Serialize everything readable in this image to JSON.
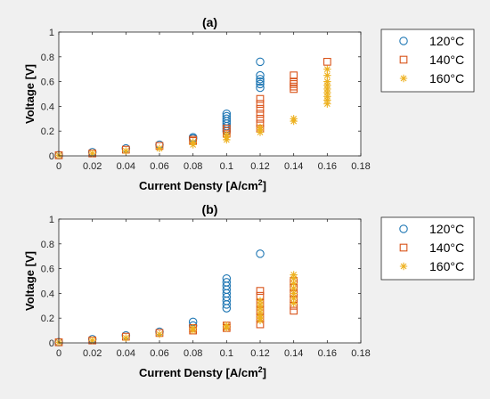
{
  "figure": {
    "background": "#f0f0f0",
    "marker_colors": {
      "120": "#1f77b4",
      "140": "#d95319",
      "160": "#edb120"
    }
  },
  "chart_data": [
    {
      "type": "scatter",
      "title": "(a)",
      "xlabel": "Current Densty [A/cm",
      "xlabel_sup": "2",
      "xlabel_tail": "]",
      "ylabel": "Voltage [V]",
      "xlim": [
        0,
        0.18
      ],
      "ylim": [
        0,
        1
      ],
      "x_ticks": [
        0,
        0.02,
        0.04,
        0.06,
        0.08,
        0.1,
        0.12,
        0.14,
        0.16,
        0.18
      ],
      "x_tick_labels": [
        "0",
        "0.02",
        "0.04",
        "0.06",
        "0.08",
        "0.1",
        "0.12",
        "0.14",
        "0.16",
        "0.18"
      ],
      "y_ticks": [
        0,
        0.2,
        0.4,
        0.6,
        0.8,
        1
      ],
      "y_tick_labels": [
        "0",
        "0.2",
        "0.4",
        "0.6",
        "0.8",
        "1"
      ],
      "grid": false,
      "legend_position": "outside-right",
      "series": [
        {
          "name": "120°C",
          "marker": "circle",
          "color": "#1f77b4",
          "points": [
            [
              0,
              0.005
            ],
            [
              0.02,
              0.03
            ],
            [
              0.04,
              0.06
            ],
            [
              0.06,
              0.09
            ],
            [
              0.08,
              0.14
            ],
            [
              0.08,
              0.15
            ],
            [
              0.1,
              0.2
            ],
            [
              0.1,
              0.22
            ],
            [
              0.1,
              0.24
            ],
            [
              0.1,
              0.26
            ],
            [
              0.1,
              0.28
            ],
            [
              0.1,
              0.3
            ],
            [
              0.1,
              0.32
            ],
            [
              0.1,
              0.34
            ],
            [
              0.12,
              0.55
            ],
            [
              0.12,
              0.58
            ],
            [
              0.12,
              0.6
            ],
            [
              0.12,
              0.62
            ],
            [
              0.12,
              0.65
            ],
            [
              0.12,
              0.76
            ]
          ]
        },
        {
          "name": "140°C",
          "marker": "square",
          "color": "#d95319",
          "points": [
            [
              0,
              0.005
            ],
            [
              0.02,
              0.02
            ],
            [
              0.04,
              0.05
            ],
            [
              0.06,
              0.08
            ],
            [
              0.08,
              0.12
            ],
            [
              0.08,
              0.13
            ],
            [
              0.1,
              0.18
            ],
            [
              0.1,
              0.2
            ],
            [
              0.1,
              0.22
            ],
            [
              0.12,
              0.22
            ],
            [
              0.12,
              0.26
            ],
            [
              0.12,
              0.3
            ],
            [
              0.12,
              0.34
            ],
            [
              0.12,
              0.38
            ],
            [
              0.12,
              0.42
            ],
            [
              0.12,
              0.46
            ],
            [
              0.14,
              0.54
            ],
            [
              0.14,
              0.56
            ],
            [
              0.14,
              0.58
            ],
            [
              0.14,
              0.6
            ],
            [
              0.14,
              0.65
            ],
            [
              0.16,
              0.76
            ]
          ]
        },
        {
          "name": "160°C",
          "marker": "star",
          "color": "#edb120",
          "points": [
            [
              0,
              0.005
            ],
            [
              0.02,
              0.02
            ],
            [
              0.04,
              0.04
            ],
            [
              0.06,
              0.06
            ],
            [
              0.08,
              0.09
            ],
            [
              0.08,
              0.11
            ],
            [
              0.1,
              0.13
            ],
            [
              0.1,
              0.15
            ],
            [
              0.1,
              0.17
            ],
            [
              0.12,
              0.19
            ],
            [
              0.12,
              0.21
            ],
            [
              0.12,
              0.23
            ],
            [
              0.14,
              0.28
            ],
            [
              0.14,
              0.3
            ],
            [
              0.16,
              0.42
            ],
            [
              0.16,
              0.45
            ],
            [
              0.16,
              0.48
            ],
            [
              0.16,
              0.51
            ],
            [
              0.16,
              0.54
            ],
            [
              0.16,
              0.57
            ],
            [
              0.16,
              0.6
            ],
            [
              0.16,
              0.65
            ],
            [
              0.16,
              0.7
            ]
          ]
        }
      ]
    },
    {
      "type": "scatter",
      "title": "(b)",
      "xlabel": "Current Densty [A/cm",
      "xlabel_sup": "2",
      "xlabel_tail": "]",
      "ylabel": "Voltage [V]",
      "xlim": [
        0,
        0.18
      ],
      "ylim": [
        0,
        1
      ],
      "x_ticks": [
        0,
        0.02,
        0.04,
        0.06,
        0.08,
        0.1,
        0.12,
        0.14,
        0.16,
        0.18
      ],
      "x_tick_labels": [
        "0",
        "0.02",
        "0.04",
        "0.06",
        "0.08",
        "0.1",
        "0.12",
        "0.14",
        "0.16",
        "0.18"
      ],
      "y_ticks": [
        0,
        0.2,
        0.4,
        0.6,
        0.8,
        1
      ],
      "y_tick_labels": [
        "0",
        "0.2",
        "0.4",
        "0.6",
        "0.8",
        "1"
      ],
      "grid": false,
      "legend_position": "outside-right",
      "series": [
        {
          "name": "120°C",
          "marker": "circle",
          "color": "#1f77b4",
          "points": [
            [
              0,
              0.005
            ],
            [
              0.02,
              0.03
            ],
            [
              0.04,
              0.06
            ],
            [
              0.06,
              0.09
            ],
            [
              0.08,
              0.14
            ],
            [
              0.08,
              0.17
            ],
            [
              0.1,
              0.28
            ],
            [
              0.1,
              0.31
            ],
            [
              0.1,
              0.34
            ],
            [
              0.1,
              0.37
            ],
            [
              0.1,
              0.4
            ],
            [
              0.1,
              0.43
            ],
            [
              0.1,
              0.46
            ],
            [
              0.1,
              0.49
            ],
            [
              0.1,
              0.52
            ],
            [
              0.12,
              0.72
            ]
          ]
        },
        {
          "name": "140°C",
          "marker": "square",
          "color": "#d95319",
          "points": [
            [
              0,
              0.005
            ],
            [
              0.02,
              0.02
            ],
            [
              0.04,
              0.05
            ],
            [
              0.06,
              0.08
            ],
            [
              0.08,
              0.1
            ],
            [
              0.08,
              0.12
            ],
            [
              0.1,
              0.12
            ],
            [
              0.1,
              0.14
            ],
            [
              0.12,
              0.15
            ],
            [
              0.12,
              0.2
            ],
            [
              0.12,
              0.26
            ],
            [
              0.12,
              0.32
            ],
            [
              0.12,
              0.38
            ],
            [
              0.12,
              0.42
            ],
            [
              0.14,
              0.26
            ],
            [
              0.14,
              0.3
            ],
            [
              0.14,
              0.35
            ],
            [
              0.14,
              0.4
            ],
            [
              0.14,
              0.45
            ],
            [
              0.14,
              0.5
            ]
          ]
        },
        {
          "name": "160°C",
          "marker": "star",
          "color": "#edb120",
          "points": [
            [
              0,
              0.005
            ],
            [
              0.02,
              0.02
            ],
            [
              0.04,
              0.04
            ],
            [
              0.06,
              0.07
            ],
            [
              0.08,
              0.1
            ],
            [
              0.08,
              0.12
            ],
            [
              0.1,
              0.12
            ],
            [
              0.1,
              0.14
            ],
            [
              0.12,
              0.18
            ],
            [
              0.12,
              0.2
            ],
            [
              0.12,
              0.22
            ],
            [
              0.12,
              0.25
            ],
            [
              0.12,
              0.28
            ],
            [
              0.12,
              0.31
            ],
            [
              0.12,
              0.34
            ],
            [
              0.14,
              0.32
            ],
            [
              0.14,
              0.36
            ],
            [
              0.14,
              0.4
            ],
            [
              0.14,
              0.44
            ],
            [
              0.14,
              0.48
            ],
            [
              0.14,
              0.52
            ],
            [
              0.14,
              0.55
            ]
          ]
        }
      ]
    }
  ]
}
